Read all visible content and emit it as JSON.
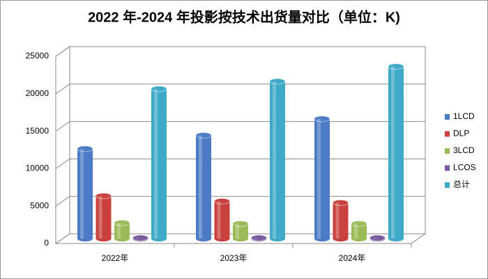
{
  "chart_data": {
    "type": "bar3d",
    "title": "2022 年-2024 年投影按技术出货量对比（单位：K)",
    "categories": [
      "2022年",
      "2023年",
      "2024年"
    ],
    "series": [
      {
        "name": "1LCD",
        "color": "#4a7bc4",
        "values": [
          12000,
          13800,
          16000
        ]
      },
      {
        "name": "DLP",
        "color": "#c9403c",
        "values": [
          5700,
          5000,
          4800
        ]
      },
      {
        "name": "3LCD",
        "color": "#9bbb59",
        "values": [
          2100,
          2000,
          2000
        ]
      },
      {
        "name": "LCOS",
        "color": "#7a5a9e",
        "values": [
          100,
          100,
          100
        ]
      },
      {
        "name": "总计",
        "color": "#3fa9c8",
        "values": [
          20000,
          21000,
          23000
        ]
      }
    ],
    "ylim": [
      0,
      25000
    ],
    "yticks": [
      0,
      5000,
      10000,
      15000,
      20000,
      25000
    ],
    "grid": true,
    "legend": "right"
  }
}
